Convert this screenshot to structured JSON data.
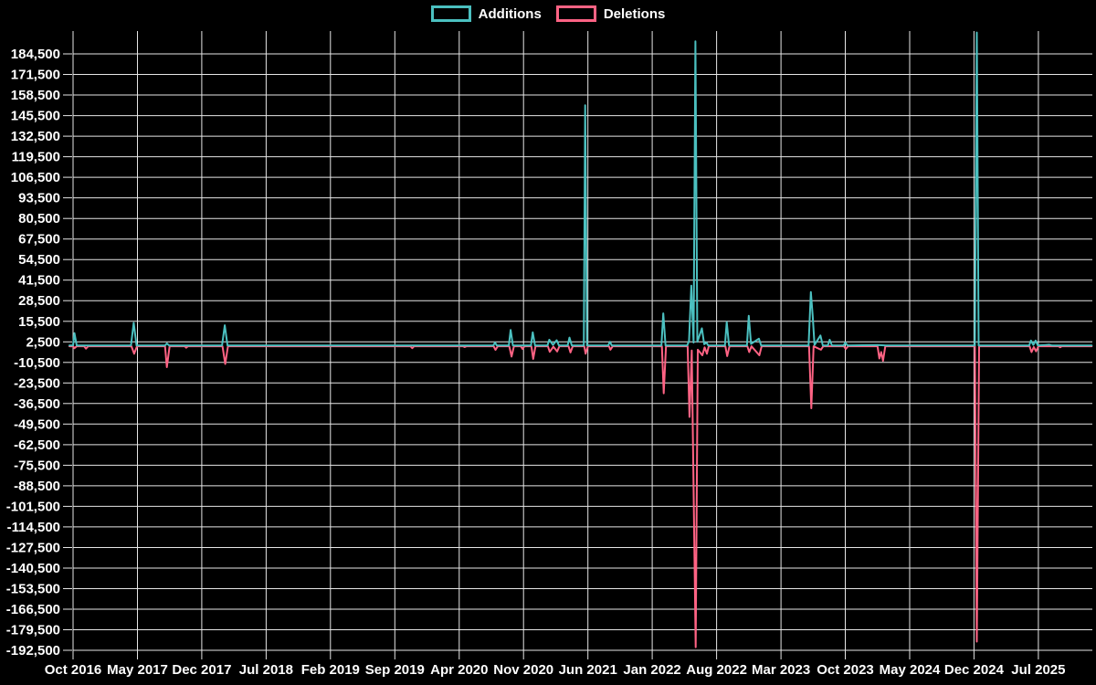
{
  "legend": {
    "items": [
      {
        "label": "Additions",
        "color": "#4bc0c0"
      },
      {
        "label": "Deletions",
        "color": "#ff6384"
      }
    ],
    "position": "top"
  },
  "chart_data": {
    "type": "line",
    "title": "",
    "xlabel": "",
    "ylabel": "",
    "background": "#000000",
    "grid_color": "#e6e6e6",
    "text_color": "#ffffff",
    "grid": true,
    "legend_position": "top",
    "x_unit": "months since Oct 2016",
    "x_axis": {
      "tick_labels": [
        "Oct 2016",
        "May 2017",
        "Dec 2017",
        "Jul 2018",
        "Feb 2019",
        "Sep 2019",
        "Apr 2020",
        "Nov 2020",
        "Jun 2021",
        "Jan 2022",
        "Aug 2022",
        "Mar 2023",
        "Oct 2023",
        "May 2024",
        "Dec 2024",
        "Jul 2025"
      ],
      "tick_months": [
        0,
        7,
        14,
        21,
        28,
        35,
        42,
        49,
        56,
        63,
        70,
        77,
        84,
        91,
        98,
        105
      ]
    },
    "y_axis": {
      "tick_values": [
        184500,
        171500,
        158500,
        145500,
        132500,
        119500,
        106500,
        93500,
        80500,
        67500,
        54500,
        41500,
        28500,
        15500,
        2500,
        -10500,
        -23500,
        -36500,
        -49500,
        -62500,
        -75500,
        -88500,
        -101500,
        -114500,
        -127500,
        -140500,
        -153500,
        -166500,
        -179500,
        -192500
      ],
      "tick_labels": [
        "184,500",
        "171,500",
        "158,500",
        "145,500",
        "132,500",
        "119,500",
        "106,500",
        "93,500",
        "80,500",
        "67,500",
        "54,500",
        "41,500",
        "28,500",
        "15,500",
        "2,500",
        "-10,500",
        "-23,500",
        "-36,500",
        "-49,500",
        "-62,500",
        "-75,500",
        "-88,500",
        "-101,500",
        "-114,500",
        "-127,500",
        "-140,500",
        "-153,500",
        "-166,500",
        "-179,500",
        "-192,500"
      ],
      "tick_step": 13000,
      "min": -192500,
      "max": 198900
    },
    "series": [
      {
        "name": "Additions",
        "color": "#4bc0c0",
        "points": [
          [
            -0.4,
            200
          ],
          [
            0.0,
            300
          ],
          [
            0.15,
            8000
          ],
          [
            0.4,
            200
          ],
          [
            1.0,
            200
          ],
          [
            6.3,
            200
          ],
          [
            6.6,
            14500
          ],
          [
            6.9,
            200
          ],
          [
            10.0,
            200
          ],
          [
            10.2,
            1500
          ],
          [
            10.45,
            200
          ],
          [
            16.2,
            200
          ],
          [
            16.5,
            13000
          ],
          [
            16.8,
            200
          ],
          [
            36.0,
            200
          ],
          [
            45.7,
            200
          ],
          [
            45.9,
            2000
          ],
          [
            46.1,
            200
          ],
          [
            47.4,
            200
          ],
          [
            47.6,
            10000
          ],
          [
            47.85,
            200
          ],
          [
            49.8,
            200
          ],
          [
            50.0,
            8500
          ],
          [
            50.25,
            200
          ],
          [
            51.6,
            200
          ],
          [
            51.8,
            3800
          ],
          [
            52.2,
            600
          ],
          [
            52.6,
            3500
          ],
          [
            52.85,
            200
          ],
          [
            53.8,
            200
          ],
          [
            54.0,
            5200
          ],
          [
            54.25,
            200
          ],
          [
            55.55,
            200
          ],
          [
            55.7,
            152000
          ],
          [
            55.9,
            200
          ],
          [
            58.2,
            200
          ],
          [
            58.4,
            2500
          ],
          [
            58.6,
            200
          ],
          [
            64.0,
            200
          ],
          [
            64.2,
            20500
          ],
          [
            64.45,
            200
          ],
          [
            66.8,
            200
          ],
          [
            67.0,
            3000
          ],
          [
            67.25,
            38000
          ],
          [
            67.5,
            2000
          ],
          [
            67.7,
            192500
          ],
          [
            67.9,
            2500
          ],
          [
            68.4,
            11000
          ],
          [
            68.65,
            1000
          ],
          [
            68.9,
            2000
          ],
          [
            69.1,
            200
          ],
          [
            70.9,
            200
          ],
          [
            71.1,
            15000
          ],
          [
            71.35,
            200
          ],
          [
            73.3,
            200
          ],
          [
            73.5,
            19000
          ],
          [
            73.75,
            1200
          ],
          [
            74.6,
            4500
          ],
          [
            74.85,
            200
          ],
          [
            80.0,
            200
          ],
          [
            80.25,
            34000
          ],
          [
            80.45,
            19000
          ],
          [
            80.65,
            500
          ],
          [
            81.3,
            6500
          ],
          [
            81.55,
            200
          ],
          [
            82.1,
            200
          ],
          [
            82.3,
            3800
          ],
          [
            82.55,
            200
          ],
          [
            83.8,
            200
          ],
          [
            84.0,
            2000
          ],
          [
            84.25,
            200
          ],
          [
            87.5,
            500
          ],
          [
            88.4,
            200
          ],
          [
            98.1,
            200
          ],
          [
            98.3,
            198000
          ],
          [
            98.5,
            200
          ],
          [
            104.0,
            200
          ],
          [
            104.2,
            3300
          ],
          [
            104.45,
            600
          ],
          [
            104.7,
            3300
          ],
          [
            104.95,
            200
          ],
          [
            106.2,
            700
          ],
          [
            106.5,
            200
          ],
          [
            110.8,
            200
          ]
        ]
      },
      {
        "name": "Deletions",
        "color": "#ff6384",
        "points": [
          [
            -0.4,
            -300
          ],
          [
            0.0,
            -400
          ],
          [
            0.15,
            -1500
          ],
          [
            0.4,
            -300
          ],
          [
            1.2,
            -300
          ],
          [
            1.4,
            -1800
          ],
          [
            1.65,
            -300
          ],
          [
            6.35,
            -300
          ],
          [
            6.65,
            -5000
          ],
          [
            6.95,
            -300
          ],
          [
            10.0,
            -300
          ],
          [
            10.2,
            -13500
          ],
          [
            10.5,
            -300
          ],
          [
            12.15,
            -300
          ],
          [
            12.3,
            -1200
          ],
          [
            12.5,
            -300
          ],
          [
            16.25,
            -300
          ],
          [
            16.55,
            -11500
          ],
          [
            16.85,
            -300
          ],
          [
            36.7,
            -300
          ],
          [
            36.9,
            -1500
          ],
          [
            37.1,
            -300
          ],
          [
            42.4,
            -300
          ],
          [
            42.6,
            -800
          ],
          [
            42.8,
            -300
          ],
          [
            45.75,
            -300
          ],
          [
            45.95,
            -2600
          ],
          [
            46.2,
            -300
          ],
          [
            47.45,
            -300
          ],
          [
            47.7,
            -6800
          ],
          [
            47.95,
            -300
          ],
          [
            48.7,
            -300
          ],
          [
            48.9,
            -2000
          ],
          [
            49.1,
            -300
          ],
          [
            49.85,
            -300
          ],
          [
            50.05,
            -8300
          ],
          [
            50.3,
            -300
          ],
          [
            51.65,
            -300
          ],
          [
            51.85,
            -3800
          ],
          [
            52.25,
            -600
          ],
          [
            52.65,
            -3600
          ],
          [
            52.9,
            -300
          ],
          [
            53.9,
            -300
          ],
          [
            54.1,
            -4200
          ],
          [
            54.35,
            -300
          ],
          [
            55.6,
            -300
          ],
          [
            55.75,
            -5000
          ],
          [
            56.0,
            -300
          ],
          [
            58.3,
            -300
          ],
          [
            58.45,
            -2500
          ],
          [
            58.7,
            -300
          ],
          [
            64.05,
            -300
          ],
          [
            64.25,
            -30000
          ],
          [
            64.5,
            -300
          ],
          [
            66.85,
            -300
          ],
          [
            67.05,
            -45000
          ],
          [
            67.3,
            -3000
          ],
          [
            67.72,
            -190500
          ],
          [
            67.95,
            -2500
          ],
          [
            68.45,
            -6000
          ],
          [
            68.7,
            -1000
          ],
          [
            68.95,
            -5000
          ],
          [
            69.15,
            -300
          ],
          [
            70.95,
            -300
          ],
          [
            71.15,
            -6500
          ],
          [
            71.4,
            -300
          ],
          [
            73.35,
            -300
          ],
          [
            73.55,
            -4000
          ],
          [
            73.8,
            -300
          ],
          [
            74.65,
            -6000
          ],
          [
            74.9,
            -300
          ],
          [
            80.05,
            -300
          ],
          [
            80.3,
            -39500
          ],
          [
            80.55,
            -300
          ],
          [
            81.35,
            -2500
          ],
          [
            81.6,
            -300
          ],
          [
            83.85,
            -300
          ],
          [
            84.05,
            -2000
          ],
          [
            84.3,
            -300
          ],
          [
            87.5,
            -300
          ],
          [
            87.7,
            -8000
          ],
          [
            87.9,
            -4000
          ],
          [
            88.1,
            -9500
          ],
          [
            88.35,
            -300
          ],
          [
            98.1,
            -300
          ],
          [
            98.3,
            -187000
          ],
          [
            98.55,
            -300
          ],
          [
            104.05,
            -300
          ],
          [
            104.25,
            -4000
          ],
          [
            104.5,
            -800
          ],
          [
            104.75,
            -3500
          ],
          [
            105.0,
            -300
          ],
          [
            107.2,
            -300
          ],
          [
            107.35,
            -900
          ],
          [
            107.55,
            -300
          ],
          [
            110.8,
            -300
          ]
        ]
      }
    ]
  }
}
